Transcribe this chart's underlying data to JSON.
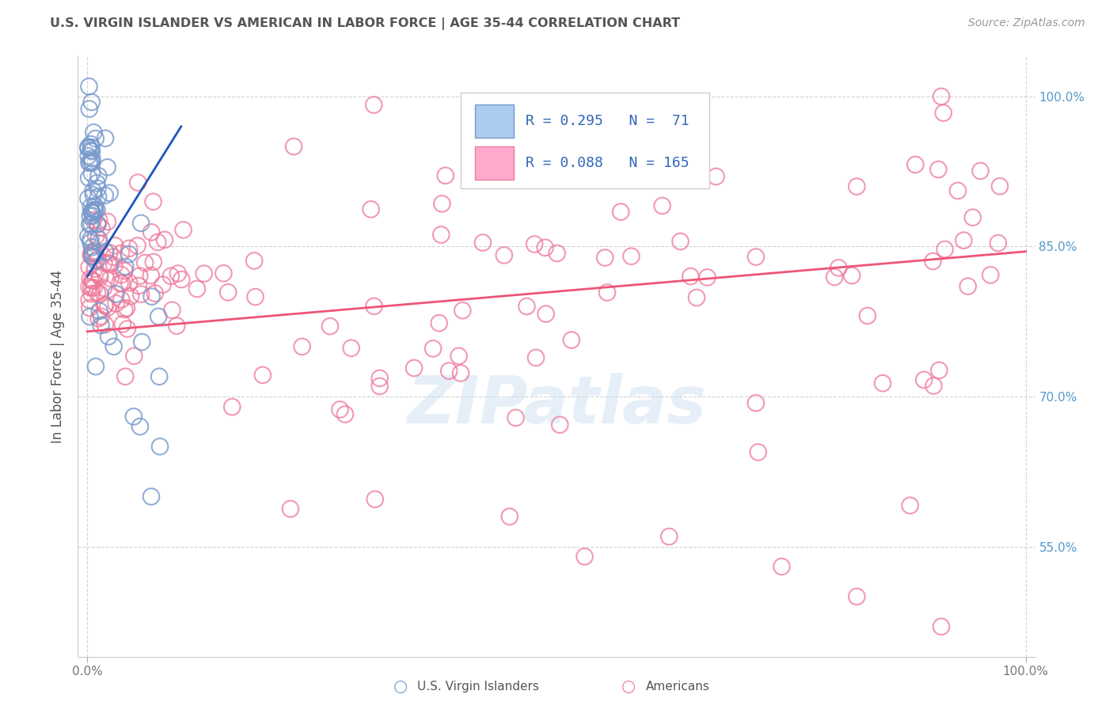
{
  "title": "U.S. VIRGIN ISLANDER VS AMERICAN IN LABOR FORCE | AGE 35-44 CORRELATION CHART",
  "source": "Source: ZipAtlas.com",
  "ylabel": "In Labor Force | Age 35-44",
  "xlim": [
    -0.01,
    1.01
  ],
  "ylim": [
    0.44,
    1.04
  ],
  "yticks": [
    0.55,
    0.7,
    0.85,
    1.0
  ],
  "ytick_labels": [
    "55.0%",
    "70.0%",
    "85.0%",
    "100.0%"
  ],
  "blue_R": 0.295,
  "blue_N": 71,
  "pink_R": 0.088,
  "pink_N": 165,
  "blue_face": "#aaccee",
  "blue_edge": "#7799cc",
  "pink_face": "#ffaacc",
  "pink_edge": "#ee7799",
  "blue_line_color": "#2255bb",
  "pink_line_color": "#ee5577",
  "watermark": "ZIPatlas",
  "bg": "#ffffff",
  "grid_color": "#cccccc",
  "title_color": "#555555",
  "legend_color": "#3366bb",
  "right_axis_color": "#5599cc",
  "source_color": "#999999"
}
